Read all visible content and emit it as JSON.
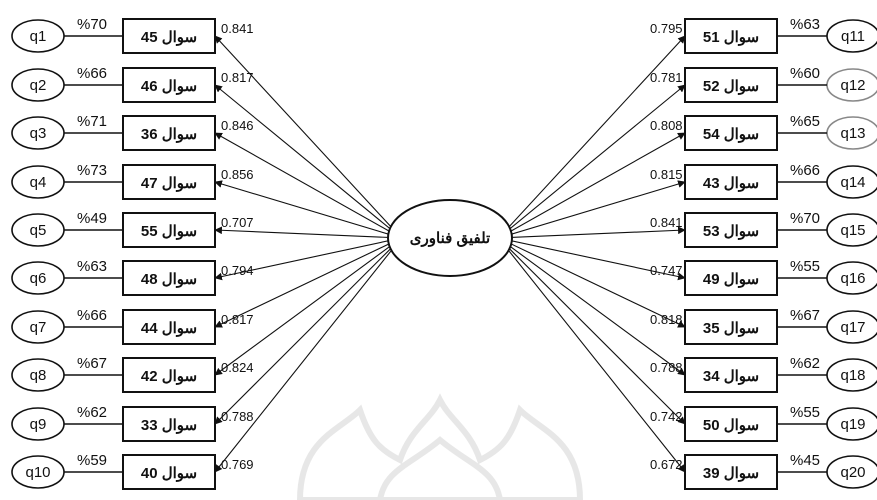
{
  "center": {
    "label": "تلفیق فناوری"
  },
  "colors": {
    "stroke": "#111111",
    "watermark": "#d9d9d9",
    "light_ellipse": "#888888"
  },
  "watermark_icon": "arabesque-watermark-icon",
  "left_items": [
    {
      "q": "q1",
      "pct": "%70",
      "item": "سوال 45",
      "loading": "0.841"
    },
    {
      "q": "q2",
      "pct": "%66",
      "item": "سوال 46",
      "loading": "0.817"
    },
    {
      "q": "q3",
      "pct": "%71",
      "item": "سوال 36",
      "loading": "0.846"
    },
    {
      "q": "q4",
      "pct": "%73",
      "item": "سوال 47",
      "loading": "0.856"
    },
    {
      "q": "q5",
      "pct": "%49",
      "item": "سوال 55",
      "loading": "0.707"
    },
    {
      "q": "q6",
      "pct": "%63",
      "item": "سوال 48",
      "loading": "0.794"
    },
    {
      "q": "q7",
      "pct": "%66",
      "item": "سوال 44",
      "loading": "0.817"
    },
    {
      "q": "q8",
      "pct": "%67",
      "item": "سوال 42",
      "loading": "0.824"
    },
    {
      "q": "q9",
      "pct": "%62",
      "item": "سوال 33",
      "loading": "0.788"
    },
    {
      "q": "q10",
      "pct": "%59",
      "item": "سوال 40",
      "loading": "0.769"
    }
  ],
  "right_items": [
    {
      "q": "q11",
      "pct": "%63",
      "item": "سوال 51",
      "loading": "0.795"
    },
    {
      "q": "q12",
      "pct": "%60",
      "item": "سوال 52",
      "loading": "0.781"
    },
    {
      "q": "q13",
      "pct": "%65",
      "item": "سوال 54",
      "loading": "0.808"
    },
    {
      "q": "q14",
      "pct": "%66",
      "item": "سوال 43",
      "loading": "0.815"
    },
    {
      "q": "q15",
      "pct": "%70",
      "item": "سوال 53",
      "loading": "0.841"
    },
    {
      "q": "q16",
      "pct": "%55",
      "item": "سوال 49",
      "loading": "0.747"
    },
    {
      "q": "q17",
      "pct": "%67",
      "item": "سوال 35",
      "loading": "0.818"
    },
    {
      "q": "q18",
      "pct": "%62",
      "item": "سوال 34",
      "loading": "0.788"
    },
    {
      "q": "q19",
      "pct": "%55",
      "item": "سوال 50",
      "loading": "0.742"
    },
    {
      "q": "q20",
      "pct": "%45",
      "item": "سوال 39",
      "loading": "0.672"
    }
  ]
}
